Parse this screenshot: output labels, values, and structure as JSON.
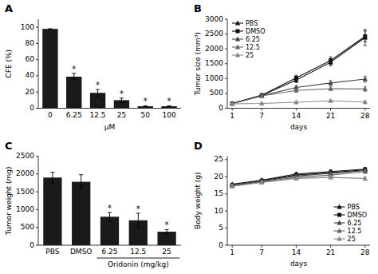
{
  "chart_data": [
    {
      "type": "bar",
      "title": "A",
      "xlabel": "μM",
      "ylabel": "CFE (%)",
      "categories": [
        "0",
        "6.25",
        "12.5",
        "25",
        "50",
        "100"
      ],
      "values": [
        98,
        39,
        19,
        10,
        2.5,
        2.5
      ],
      "errors": [
        0,
        4,
        4,
        2.5,
        0.5,
        0.5
      ],
      "color": "#1a1a1a",
      "ylim": [
        0,
        110
      ],
      "yticks": [
        0,
        20,
        40,
        60,
        80,
        100
      ],
      "annotations": [
        {
          "text": "*",
          "category": "6.25"
        },
        {
          "text": "*",
          "category": "12.5"
        },
        {
          "text": "*",
          "category": "25"
        },
        {
          "text": "*",
          "category": "50"
        },
        {
          "text": "*",
          "category": "100"
        }
      ]
    },
    {
      "type": "line",
      "title": "B",
      "xlabel": "days",
      "ylabel": "Tumor size (mm³)",
      "x": [
        1,
        7,
        14,
        21,
        28
      ],
      "xlim": [
        0,
        29
      ],
      "xticks": [
        1,
        7,
        14,
        21,
        28
      ],
      "ylim": [
        0,
        3000
      ],
      "yticks": [
        0,
        500,
        1000,
        1500,
        2000,
        2500,
        3000
      ],
      "legend": "upper left",
      "series": [
        {
          "name": "PBS",
          "color": "#111111",
          "marker": "triangle",
          "values": [
            160,
            430,
            950,
            1550,
            2380
          ],
          "errors": [
            15,
            35,
            80,
            120,
            270
          ]
        },
        {
          "name": "DMSO",
          "color": "#111111",
          "marker": "square",
          "values": [
            160,
            440,
            1020,
            1610,
            2420
          ],
          "errors": [
            15,
            35,
            90,
            120,
            180
          ]
        },
        {
          "name": "6.25",
          "color": "#444444",
          "marker": "triangle",
          "values": [
            155,
            420,
            700,
            850,
            980
          ],
          "errors": [
            15,
            35,
            60,
            80,
            100
          ]
        },
        {
          "name": "12.5",
          "color": "#666666",
          "marker": "triangle",
          "values": [
            155,
            415,
            600,
            660,
            650
          ],
          "errors": [
            15,
            35,
            50,
            60,
            80
          ]
        },
        {
          "name": "25",
          "color": "#888888",
          "marker": "triangle",
          "values": [
            150,
            160,
            200,
            250,
            210
          ],
          "errors": [
            15,
            15,
            25,
            35,
            35
          ]
        }
      ]
    },
    {
      "type": "bar",
      "title": "C",
      "xlabel": "Oridonin (mg/kg)",
      "ylabel": "Tumor weight (mg)",
      "categories": [
        "PBS",
        "DMSO",
        "6.25",
        "12.5",
        "25"
      ],
      "values": [
        1900,
        1780,
        800,
        700,
        380
      ],
      "errors": [
        150,
        200,
        120,
        200,
        60
      ],
      "color": "#1a1a1a",
      "ylim": [
        0,
        2500
      ],
      "yticks": [
        0,
        500,
        1000,
        1500,
        2000,
        2500
      ],
      "annotations": [
        {
          "text": "*",
          "category": "6.25"
        },
        {
          "text": "*",
          "category": "12.5"
        },
        {
          "text": "*",
          "category": "25"
        }
      ]
    },
    {
      "type": "line",
      "title": "D",
      "xlabel": "days",
      "ylabel": "Body weight (g)",
      "x": [
        1,
        7,
        14,
        21,
        28
      ],
      "xlim": [
        0,
        29
      ],
      "xticks": [
        1,
        7,
        14,
        21,
        28
      ],
      "ylim": [
        0,
        26
      ],
      "yticks": [
        0,
        5,
        10,
        15,
        20,
        25
      ],
      "legend": "lower right",
      "series": [
        {
          "name": "PBS",
          "color": "#111111",
          "marker": "triangle",
          "values": [
            17.8,
            19.0,
            20.8,
            21.5,
            22.2
          ],
          "errors": [
            0.3,
            0.4,
            0.4,
            0.5,
            0.5
          ]
        },
        {
          "name": "DMSO",
          "color": "#111111",
          "marker": "square",
          "values": [
            17.5,
            18.8,
            20.5,
            21.2,
            22.0
          ],
          "errors": [
            0.3,
            0.4,
            0.4,
            0.5,
            0.5
          ]
        },
        {
          "name": "6.25",
          "color": "#444444",
          "marker": "triangle",
          "values": [
            17.5,
            18.7,
            20.2,
            21.0,
            21.8
          ],
          "errors": [
            0.3,
            0.4,
            0.4,
            0.5,
            0.5
          ]
        },
        {
          "name": "12.5",
          "color": "#666666",
          "marker": "triangle",
          "values": [
            17.3,
            18.5,
            19.8,
            20.5,
            21.5
          ],
          "errors": [
            0.3,
            0.4,
            0.4,
            0.4,
            0.5
          ]
        },
        {
          "name": "25",
          "color": "#888888",
          "marker": "triangle",
          "values": [
            17.2,
            18.3,
            19.5,
            19.8,
            19.5
          ],
          "errors": [
            0.3,
            0.3,
            0.4,
            0.4,
            0.5
          ]
        }
      ]
    }
  ]
}
